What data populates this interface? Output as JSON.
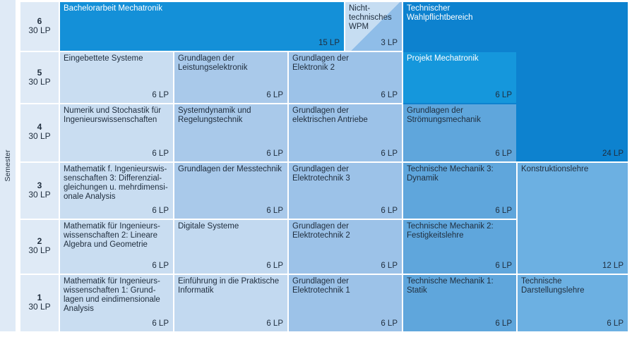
{
  "axis_label": "Semester",
  "semesters": [
    {
      "num": "6",
      "lp": "30 LP"
    },
    {
      "num": "5",
      "lp": "30 LP"
    },
    {
      "num": "4",
      "lp": "30 LP"
    },
    {
      "num": "3",
      "lp": "30 LP"
    },
    {
      "num": "2",
      "lp": "30 LP"
    },
    {
      "num": "1",
      "lp": "30 LP"
    }
  ],
  "modules": {
    "bachelorarbeit": {
      "title": "Bachelorarbeit Mechatronik",
      "lp": "15 LP"
    },
    "wpm": {
      "title": "Nicht-\ntechnisches\nWPM",
      "lp": "3 LP"
    },
    "wahlpflicht": {
      "title": "Technischer\nWahlpflichtbereich",
      "lp": "24 LP"
    },
    "s5_c1": {
      "title": "Eingebettete Systeme",
      "lp": "6 LP"
    },
    "s5_c2": {
      "title": "Grundlagen der\nLeistungselektronik",
      "lp": "6 LP"
    },
    "s5_c3": {
      "title": "Grundlagen der\nElektronik 2",
      "lp": "6 LP"
    },
    "s5_c4": {
      "title": "Projekt Mechatronik",
      "lp": "6 LP"
    },
    "s4_c1": {
      "title": "Numerik und Stochastik für\nIngenieurswissenschaften",
      "lp": "6 LP"
    },
    "s4_c2": {
      "title": "Systemdynamik und\nRegelungstechnik",
      "lp": "6 LP"
    },
    "s4_c3": {
      "title": "Grundlagen der\nelektrischen Antriebe",
      "lp": "6 LP"
    },
    "s4_c4": {
      "title": "Grundlagen der\nStrömungsmechanik",
      "lp": "6 LP"
    },
    "s3_c1": {
      "title": "Mathematik f. Ingenieurswis-\nsenschaften 3: Differenzial-\ngleichungen u. mehrdimensi-\nonale Analysis",
      "lp": "6 LP"
    },
    "s3_c2": {
      "title": "Grundlagen der Messtechnik",
      "lp": "6 LP"
    },
    "s3_c3": {
      "title": "Grundlagen der\nElektrotechnik 3",
      "lp": "6 LP"
    },
    "s3_c4": {
      "title": "Technische Mechanik 3:\nDynamik",
      "lp": "6 LP"
    },
    "konstruktion": {
      "title": "Konstruktionslehre",
      "lp": "12 LP"
    },
    "s2_c1": {
      "title": "Mathematik für Ingenieurs-\nwissenschaften 2: Lineare\nAlgebra und Geometrie",
      "lp": "6 LP"
    },
    "s2_c2": {
      "title": "Digitale Systeme",
      "lp": "6 LP"
    },
    "s2_c3": {
      "title": "Grundlagen der\nElektrotechnik 2",
      "lp": "6 LP"
    },
    "s2_c4": {
      "title": "Technische Mechanik 2:\nFestigkeitslehre",
      "lp": "6 LP"
    },
    "s1_c1": {
      "title": "Mathematik für Ingenieurs-\nwissenschaften 1: Grund-\nlagen und eindimensionale\nAnalysis",
      "lp": "6 LP"
    },
    "s1_c2": {
      "title": "Einführung in die Praktische\nInformatik",
      "lp": "6 LP"
    },
    "s1_c3": {
      "title": "Grundlagen der\nElektrotechnik 1",
      "lp": "6 LP"
    },
    "s1_c4": {
      "title": "Technische Mechanik 1:\nStatik",
      "lp": "6 LP"
    },
    "darstellung": {
      "title": "Technische\nDarstellungslehre",
      "lp": "6 LP"
    }
  },
  "colors": {
    "semester_bg": "#dfeaf6",
    "math": "#c9ddf1",
    "light": "#c2d9f0",
    "mid": "#a9c9ea",
    "elec": "#9cc2e8",
    "mech": "#5fa6dc",
    "konstruktion": "#6cb0e2",
    "bachelor": "#1490d8",
    "wahlpflicht": "#0d82cf",
    "projekt": "#1597dc",
    "wpm": "#a9cdee"
  }
}
